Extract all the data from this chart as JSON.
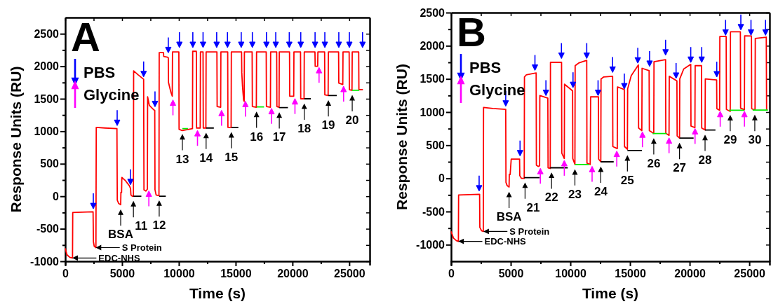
{
  "chart_data": [
    {
      "type": "line",
      "title": "A",
      "xlabel": "Time (s)",
      "ylabel": "Response Units (RU)",
      "xlim": [
        0,
        26800
      ],
      "ylim": [
        -1000,
        2750
      ],
      "xticks": [
        0,
        {
          "value": 2500,
          "label": null
        },
        5000,
        {
          "value": 7500,
          "label": null
        },
        10000,
        {
          "value": 12500,
          "label": null
        },
        15000,
        {
          "value": 17500,
          "label": null
        },
        20000,
        {
          "value": 22500,
          "label": null
        },
        25000
      ],
      "yticks": [
        -1000,
        {
          "value": -750,
          "label": null
        },
        -500,
        {
          "value": -250,
          "label": null
        },
        0,
        {
          "value": 250,
          "label": null
        },
        500,
        {
          "value": 750,
          "label": null
        },
        1000,
        {
          "value": 1250,
          "label": null
        },
        1500,
        {
          "value": 1750,
          "label": null
        },
        2000,
        {
          "value": 2250,
          "label": null
        },
        2500
      ],
      "legend": "top left",
      "line_style": "solid",
      "series": [
        {
          "color": "#ff0000",
          "x": [
            0,
            150,
            400,
            640,
            660,
            1500,
            2450,
            2480,
            2550,
            2700,
            2730,
            3500,
            4550,
            4580,
            4700,
            4880,
            4900,
            4960,
            4980,
            5300,
            5650,
            5750,
            5780,
            5900,
            6000,
            6020,
            6400,
            6900,
            6930,
            7100,
            7230,
            7250,
            7400,
            7800,
            7880,
            7900,
            8000,
            8250,
            8270,
            8650,
            8670,
            9000,
            9070,
            9090,
            9300,
            9420,
            9440,
            10000,
            10020,
            10300,
            11200,
            11220,
            11540,
            11560,
            11880,
            11900,
            12130,
            12150,
            12380,
            12400,
            13350,
            13370,
            13680,
            13700,
            14300,
            14320,
            14600,
            14620,
            15520,
            15540,
            15600,
            15700,
            15750,
            15770,
            16450,
            16470,
            16820,
            16840,
            17690,
            17710,
            18060,
            18080,
            18610,
            18630,
            18820,
            18840,
            19740,
            19760,
            20110,
            20130,
            20710,
            20730,
            21020,
            21040,
            21980,
            22000,
            22220,
            22240,
            22830,
            22850,
            23140,
            23160,
            24060,
            24080,
            24430,
            24450,
            24990,
            25010,
            25240,
            25260,
            25830,
            25850,
            26200
          ],
          "values": [
            -800,
            -900,
            -940,
            -950,
            -250,
            -245,
            -240,
            -700,
            -770,
            -790,
            1060,
            1050,
            1040,
            -60,
            -110,
            -130,
            60,
            60,
            290,
            240,
            160,
            120,
            20,
            0,
            0,
            1930,
            1870,
            1800,
            100,
            80,
            110,
            1530,
            1400,
            1330,
            1320,
            100,
            20,
            10,
            2210,
            2210,
            2150,
            2140,
            2130,
            1750,
            1600,
            1540,
            2220,
            2220,
            1030,
            1010,
            1040,
            2230,
            2230,
            1050,
            1050,
            2220,
            2220,
            1050,
            1050,
            2220,
            2220,
            1380,
            1370,
            2220,
            2220,
            1060,
            1060,
            2220,
            2220,
            1900,
            1700,
            1480,
            1460,
            2220,
            2220,
            1380,
            1370,
            2220,
            2220,
            1380,
            1370,
            2220,
            2220,
            1380,
            1370,
            2220,
            2220,
            1540,
            1540,
            2220,
            2220,
            1500,
            1500,
            2220,
            2220,
            2000,
            2000,
            2220,
            2220,
            1560,
            1550,
            2220,
            2220,
            1740,
            1720,
            2220,
            2220,
            1640,
            1630,
            2220,
            2220,
            1640,
            1640
          ]
        },
        {
          "color": "#000000",
          "x": [
            6000,
            6700,
            7400,
            8270,
            8850,
            10000,
            12400,
            13080,
            13800,
            14620,
            15240,
            17000,
            18840,
            19600,
            20300,
            21040,
            21620,
            22400,
            23160,
            23900
          ],
          "values": [
            0,
            0,
            null,
            0,
            0,
            null,
            1050,
            1050,
            null,
            1060,
            1060,
            null,
            1365,
            1365,
            null,
            1500,
            1500,
            null,
            1550,
            1550
          ]
        },
        {
          "color": "#00ee00",
          "x": [
            10310,
            10800,
            13000,
            16840,
            17500,
            21000,
            25260,
            25880
          ],
          "values": [
            1040,
            1040,
            null,
            1375,
            1375,
            null,
            1630,
            1630
          ]
        },
        {
          "type": "scatter",
          "marker": "triangle",
          "name": "PBS",
          "color": "#0000ff",
          "x": [
            2470,
            4570,
            5740,
            6900,
            7900,
            9070,
            10050,
            11230,
            12130,
            13330,
            14280,
            15490,
            16470,
            17710,
            18530,
            19720,
            20730,
            21990,
            22850,
            24080,
            25010,
            26170
          ],
          "values": [
            -150,
            1130,
            220,
            1880,
            1420,
            2250,
            2330,
            2330,
            2330,
            2330,
            2330,
            2330,
            2330,
            2330,
            2330,
            2330,
            2330,
            2330,
            2330,
            2330,
            2330,
            2330
          ]
        },
        {
          "type": "scatter",
          "marker": "triangle",
          "name": "Glycine",
          "color": "#ff00ff",
          "x": [
            7360,
            9480,
            11640,
            13760,
            15860,
            18160,
            20220,
            22340,
            24500
          ],
          "values": [
            40,
            1440,
            970,
            1280,
            1420,
            1310,
            1460,
            1940,
            1650
          ]
        }
      ],
      "annotations": [
        {
          "text": "EDC-NHS",
          "x": 640,
          "y": -950
        },
        {
          "text": "S Protein",
          "x": 2700,
          "y": -790
        },
        {
          "text": "BSA",
          "x": 4880,
          "y": -130
        },
        {
          "text": "11",
          "x": 6000,
          "y": 0
        },
        {
          "text": "12",
          "x": 8270,
          "y": 10
        },
        {
          "text": "13",
          "x": 10310,
          "y": 1030
        },
        {
          "text": "14",
          "x": 12400,
          "y": 1050
        },
        {
          "text": "15",
          "x": 14620,
          "y": 1060
        },
        {
          "text": "16",
          "x": 16840,
          "y": 1375
        },
        {
          "text": "17",
          "x": 18840,
          "y": 1365
        },
        {
          "text": "18",
          "x": 21040,
          "y": 1500
        },
        {
          "text": "19",
          "x": 23160,
          "y": 1550
        },
        {
          "text": "20",
          "x": 25260,
          "y": 1630
        }
      ]
    },
    {
      "type": "line",
      "title": "B",
      "xlabel": "Time (s)",
      "ylabel": "Response Units (RU)",
      "xlim": [
        0,
        26700
      ],
      "ylim": [
        -1250,
        2500
      ],
      "xticks": [
        0,
        {
          "value": 2500,
          "label": null
        },
        5000,
        {
          "value": 7500,
          "label": null
        },
        10000,
        {
          "value": 12500,
          "label": null
        },
        15000,
        {
          "value": 17500,
          "label": null
        },
        20000,
        {
          "value": 22500,
          "label": null
        },
        25000
      ],
      "yticks": [
        -1000,
        {
          "value": -750,
          "label": null
        },
        -500,
        {
          "value": -250,
          "label": null
        },
        0,
        {
          "value": 250,
          "label": null
        },
        500,
        {
          "value": 750,
          "label": null
        },
        1000,
        {
          "value": 1250,
          "label": null
        },
        1500,
        {
          "value": 1750,
          "label": null
        },
        2000,
        {
          "value": 2250,
          "label": null
        },
        2500
      ],
      "legend": "top left",
      "line_style": "solid",
      "series": [
        {
          "color": "#ff0000",
          "x": [
            0,
            200,
            450,
            612,
            630,
            1500,
            2390,
            2410,
            2550,
            2700,
            2720,
            3500,
            4580,
            4600,
            4700,
            4860,
            4880,
            4950,
            5040,
            5740,
            5760,
            5900,
            6130,
            6150,
            6300,
            7130,
            7150,
            7300,
            7420,
            7440,
            8110,
            8130,
            8310,
            8330,
            9260,
            9280,
            9490,
            9510,
            10185,
            10200,
            10380,
            10400,
            10700,
            11370,
            11390,
            11660,
            11700,
            12350,
            12370,
            12550,
            12570,
            12800,
            13540,
            13560,
            13930,
            13950,
            14520,
            14540,
            14780,
            14800,
            15100,
            15700,
            15720,
            15990,
            16010,
            16600,
            16620,
            16990,
            17010,
            17980,
            18000,
            18270,
            18290,
            18930,
            18950,
            19150,
            19170,
            19500,
            20090,
            20110,
            20440,
            20460,
            20990,
            21010,
            21290,
            21310,
            22260,
            22280,
            22510,
            22530,
            23060,
            23080,
            23400,
            23420,
            24250,
            24270,
            24590,
            24610,
            25180,
            25200,
            25480,
            25500,
            26420,
            26450
          ],
          "values": [
            -800,
            -900,
            -940,
            -950,
            -250,
            -245,
            -240,
            -740,
            -790,
            -800,
            1070,
            1055,
            1040,
            -60,
            -110,
            -130,
            60,
            60,
            290,
            290,
            40,
            0,
            0,
            1530,
            1560,
            1590,
            200,
            180,
            190,
            1250,
            1210,
            160,
            150,
            1750,
            1750,
            380,
            300,
            1420,
            1320,
            300,
            210,
            1700,
            1740,
            1780,
            230,
            210,
            1230,
            1230,
            290,
            250,
            1500,
            1530,
            1540,
            480,
            450,
            1380,
            1340,
            480,
            440,
            1350,
            1550,
            1710,
            760,
            720,
            1660,
            1625,
            720,
            677,
            1760,
            1790,
            680,
            648,
            1540,
            1470,
            640,
            607,
            1500,
            1650,
            1720,
            790,
            765,
            1700,
            1700,
            760,
            730,
            1500,
            1484,
            1050,
            1028,
            2140,
            2140,
            1040,
            1011,
            2210,
            2210,
            1060,
            1035,
            2150,
            2147,
            1050,
            1030,
            2110,
            2130,
            1030
          ]
        },
        {
          "color": "#000000",
          "x": [
            6130,
            7420,
            7800,
            8310,
            9780,
            11000,
            12550,
            13630,
            14200,
            14780,
            16000,
            17500,
            19150,
            20330,
            20800,
            21290,
            22160
          ],
          "values": [
            10,
            10,
            null,
            160,
            160,
            null,
            250,
            250,
            null,
            421,
            421,
            null,
            607,
            607,
            null,
            730,
            730
          ]
        },
        {
          "color": "#00ee00",
          "x": [
            10380,
            11560,
            14000,
            16890,
            18070,
            20000,
            23300,
            24590,
            25000,
            25280,
            26560
          ],
          "values": [
            210,
            210,
            null,
            677,
            677,
            null,
            1028,
            1028,
            null,
            1030,
            1030
          ]
        },
        {
          "type": "scatter",
          "marker": "triangle",
          "name": "PBS",
          "color": "#0000ff",
          "x": [
            2350,
            4580,
            5780,
            7030,
            7950,
            9250,
            10220,
            11370,
            12320,
            13540,
            14520,
            15650,
            16640,
            17980,
            18860,
            20090,
            21010,
            22270,
            23010,
            24290,
            25140,
            26360
          ],
          "values": [
            -150,
            1130,
            380,
            1670,
            1290,
            1850,
            1410,
            1850,
            1290,
            1640,
            1390,
            1780,
            1730,
            1900,
            1550,
            1790,
            1790,
            1570,
            2200,
            2280,
            2200,
            2200
          ]
        },
        {
          "type": "scatter",
          "marker": "triangle",
          "name": "Glycine",
          "color": "#ff00ff",
          "x": [
            7480,
            9490,
            11820,
            13890,
            16040,
            18270,
            20450,
            22560,
            24590
          ],
          "values": [
            110,
            230,
            140,
            370,
            660,
            570,
            710,
            970,
            970
          ]
        }
      ],
      "annotations": [
        {
          "text": "EDC-NHS",
          "x": 620,
          "y": -950
        },
        {
          "text": "S Protein",
          "x": 2720,
          "y": -800
        },
        {
          "text": "BSA",
          "x": 4860,
          "y": -130
        },
        {
          "text": "21",
          "x": 6200,
          "y": 10
        },
        {
          "text": "22",
          "x": 8420,
          "y": 160
        },
        {
          "text": "23",
          "x": 10380,
          "y": 210
        },
        {
          "text": "24",
          "x": 12550,
          "y": 250
        },
        {
          "text": "25",
          "x": 14780,
          "y": 421
        },
        {
          "text": "26",
          "x": 16990,
          "y": 677
        },
        {
          "text": "27",
          "x": 19150,
          "y": 607
        },
        {
          "text": "28",
          "x": 21290,
          "y": 730
        },
        {
          "text": "29",
          "x": 23400,
          "y": 1028
        },
        {
          "text": "30",
          "x": 25460,
          "y": 1030
        }
      ]
    }
  ]
}
